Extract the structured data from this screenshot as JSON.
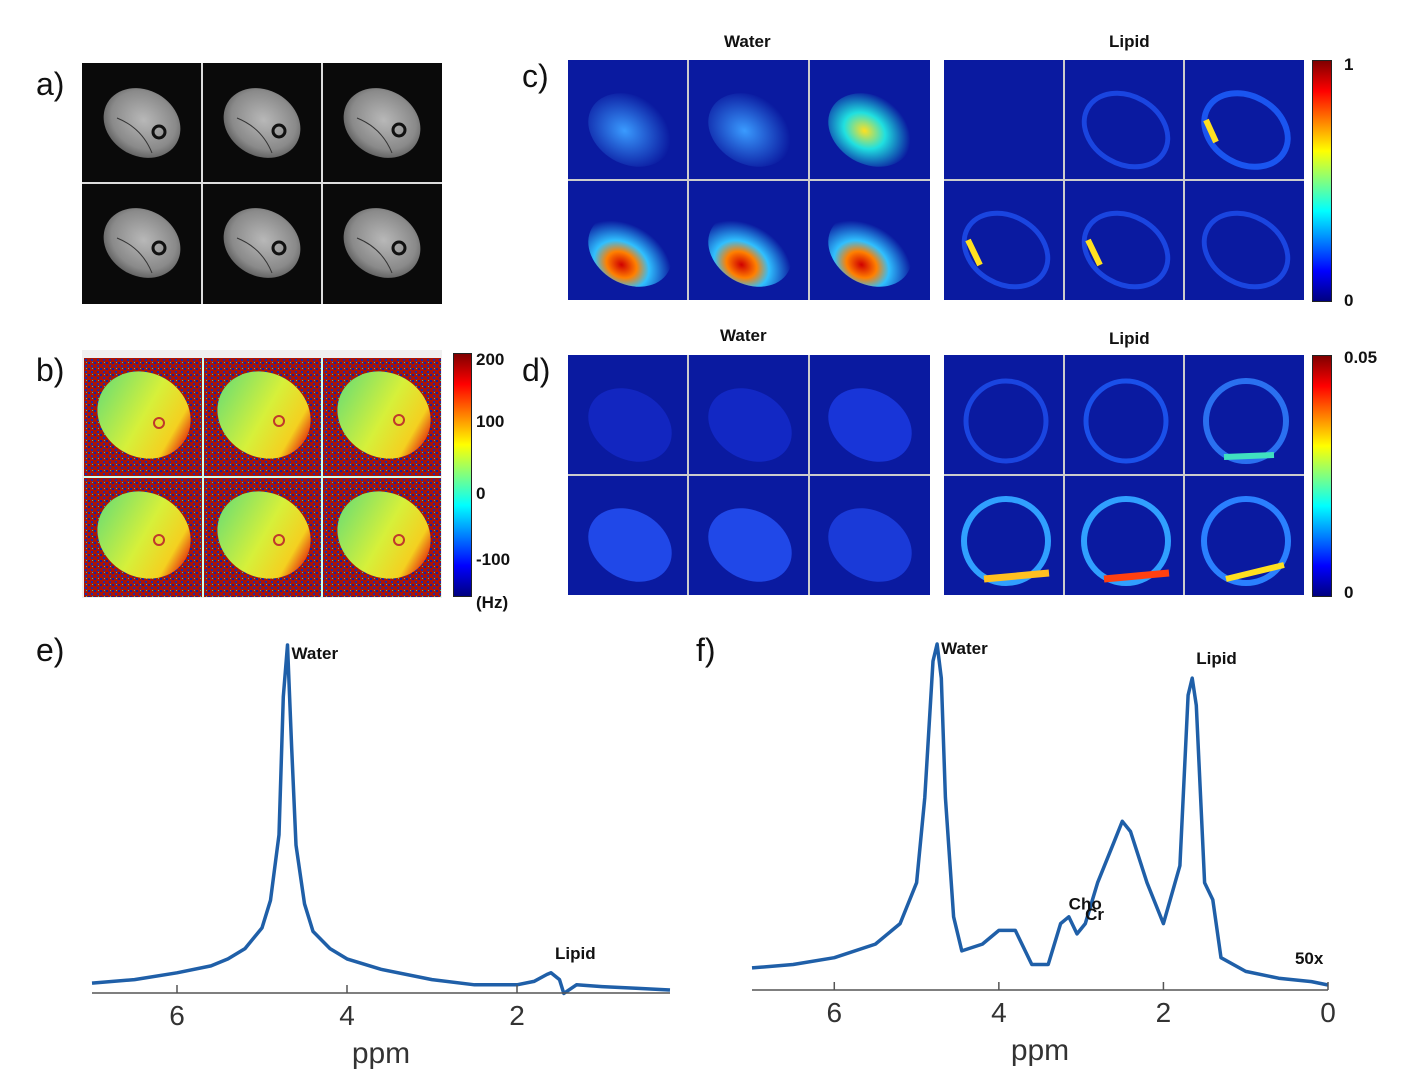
{
  "panels": {
    "a": {
      "label": "a)"
    },
    "b": {
      "label": "b)",
      "colorbar": {
        "ticks": [
          "200",
          "100",
          "0",
          "-100"
        ],
        "unit": "(Hz)"
      }
    },
    "c": {
      "label": "c)",
      "titles": {
        "water": "Water",
        "lipid": "Lipid"
      },
      "colorbar": {
        "max": "1",
        "min": "0"
      }
    },
    "d": {
      "label": "d)",
      "titles": {
        "water": "Water",
        "lipid": "Lipid"
      },
      "colorbar": {
        "max": "0.05",
        "min": "0"
      }
    },
    "e": {
      "label": "e)"
    },
    "f": {
      "label": "f)"
    }
  },
  "chart_data": [
    {
      "id": "e",
      "type": "line",
      "xlabel": "ppm",
      "x_ticks": [
        "6",
        "4",
        "2"
      ],
      "xlim": [
        7,
        0.2
      ],
      "x_reversed": true,
      "annotations": [
        {
          "text": "Water",
          "ppm": 4.7
        },
        {
          "text": "Lipid",
          "ppm": 1.6
        }
      ],
      "series": [
        {
          "ppm": [
            7.0,
            6.5,
            6.0,
            5.6,
            5.4,
            5.2,
            5.0,
            4.9,
            4.8,
            4.75,
            4.7,
            4.65,
            4.6,
            4.5,
            4.4,
            4.2,
            4.0,
            3.6,
            3.0,
            2.5,
            2.0,
            1.8,
            1.65,
            1.6,
            1.5,
            1.45,
            1.3,
            1.0,
            0.6,
            0.2
          ],
          "intensity": [
            0.02,
            0.03,
            0.05,
            0.07,
            0.09,
            0.12,
            0.18,
            0.26,
            0.45,
            0.85,
            1.0,
            0.7,
            0.42,
            0.25,
            0.17,
            0.12,
            0.09,
            0.06,
            0.03,
            0.015,
            0.015,
            0.025,
            0.045,
            0.05,
            0.03,
            -0.01,
            0.015,
            0.01,
            0.005,
            0.0
          ]
        }
      ]
    },
    {
      "id": "f",
      "type": "line",
      "xlabel": "ppm",
      "x_ticks": [
        "6",
        "4",
        "2",
        "0"
      ],
      "xlim": [
        7,
        0
      ],
      "x_reversed": true,
      "annotations": [
        {
          "text": "Water",
          "ppm": 4.75
        },
        {
          "text": "Lipid",
          "ppm": 1.65
        },
        {
          "text": "Cho",
          "ppm": 3.2
        },
        {
          "text": "Cr",
          "ppm": 3.0
        },
        {
          "text": "50x",
          "ppm": 0.45
        }
      ],
      "series": [
        {
          "ppm": [
            7.0,
            6.5,
            6.0,
            5.5,
            5.2,
            5.0,
            4.9,
            4.8,
            4.75,
            4.7,
            4.65,
            4.55,
            4.45,
            4.2,
            4.0,
            3.8,
            3.6,
            3.4,
            3.25,
            3.15,
            3.05,
            2.95,
            2.8,
            2.6,
            2.5,
            2.4,
            2.2,
            2.0,
            1.8,
            1.7,
            1.65,
            1.6,
            1.5,
            1.4,
            1.3,
            1.0,
            0.6,
            0.2,
            0.0
          ],
          "intensity": [
            0.05,
            0.06,
            0.08,
            0.12,
            0.18,
            0.3,
            0.55,
            0.95,
            1.0,
            0.9,
            0.55,
            0.2,
            0.1,
            0.12,
            0.16,
            0.16,
            0.06,
            0.06,
            0.18,
            0.2,
            0.15,
            0.18,
            0.3,
            0.42,
            0.48,
            0.45,
            0.3,
            0.18,
            0.35,
            0.85,
            0.9,
            0.82,
            0.3,
            0.25,
            0.08,
            0.04,
            0.02,
            0.01,
            0.0
          ]
        }
      ]
    }
  ]
}
